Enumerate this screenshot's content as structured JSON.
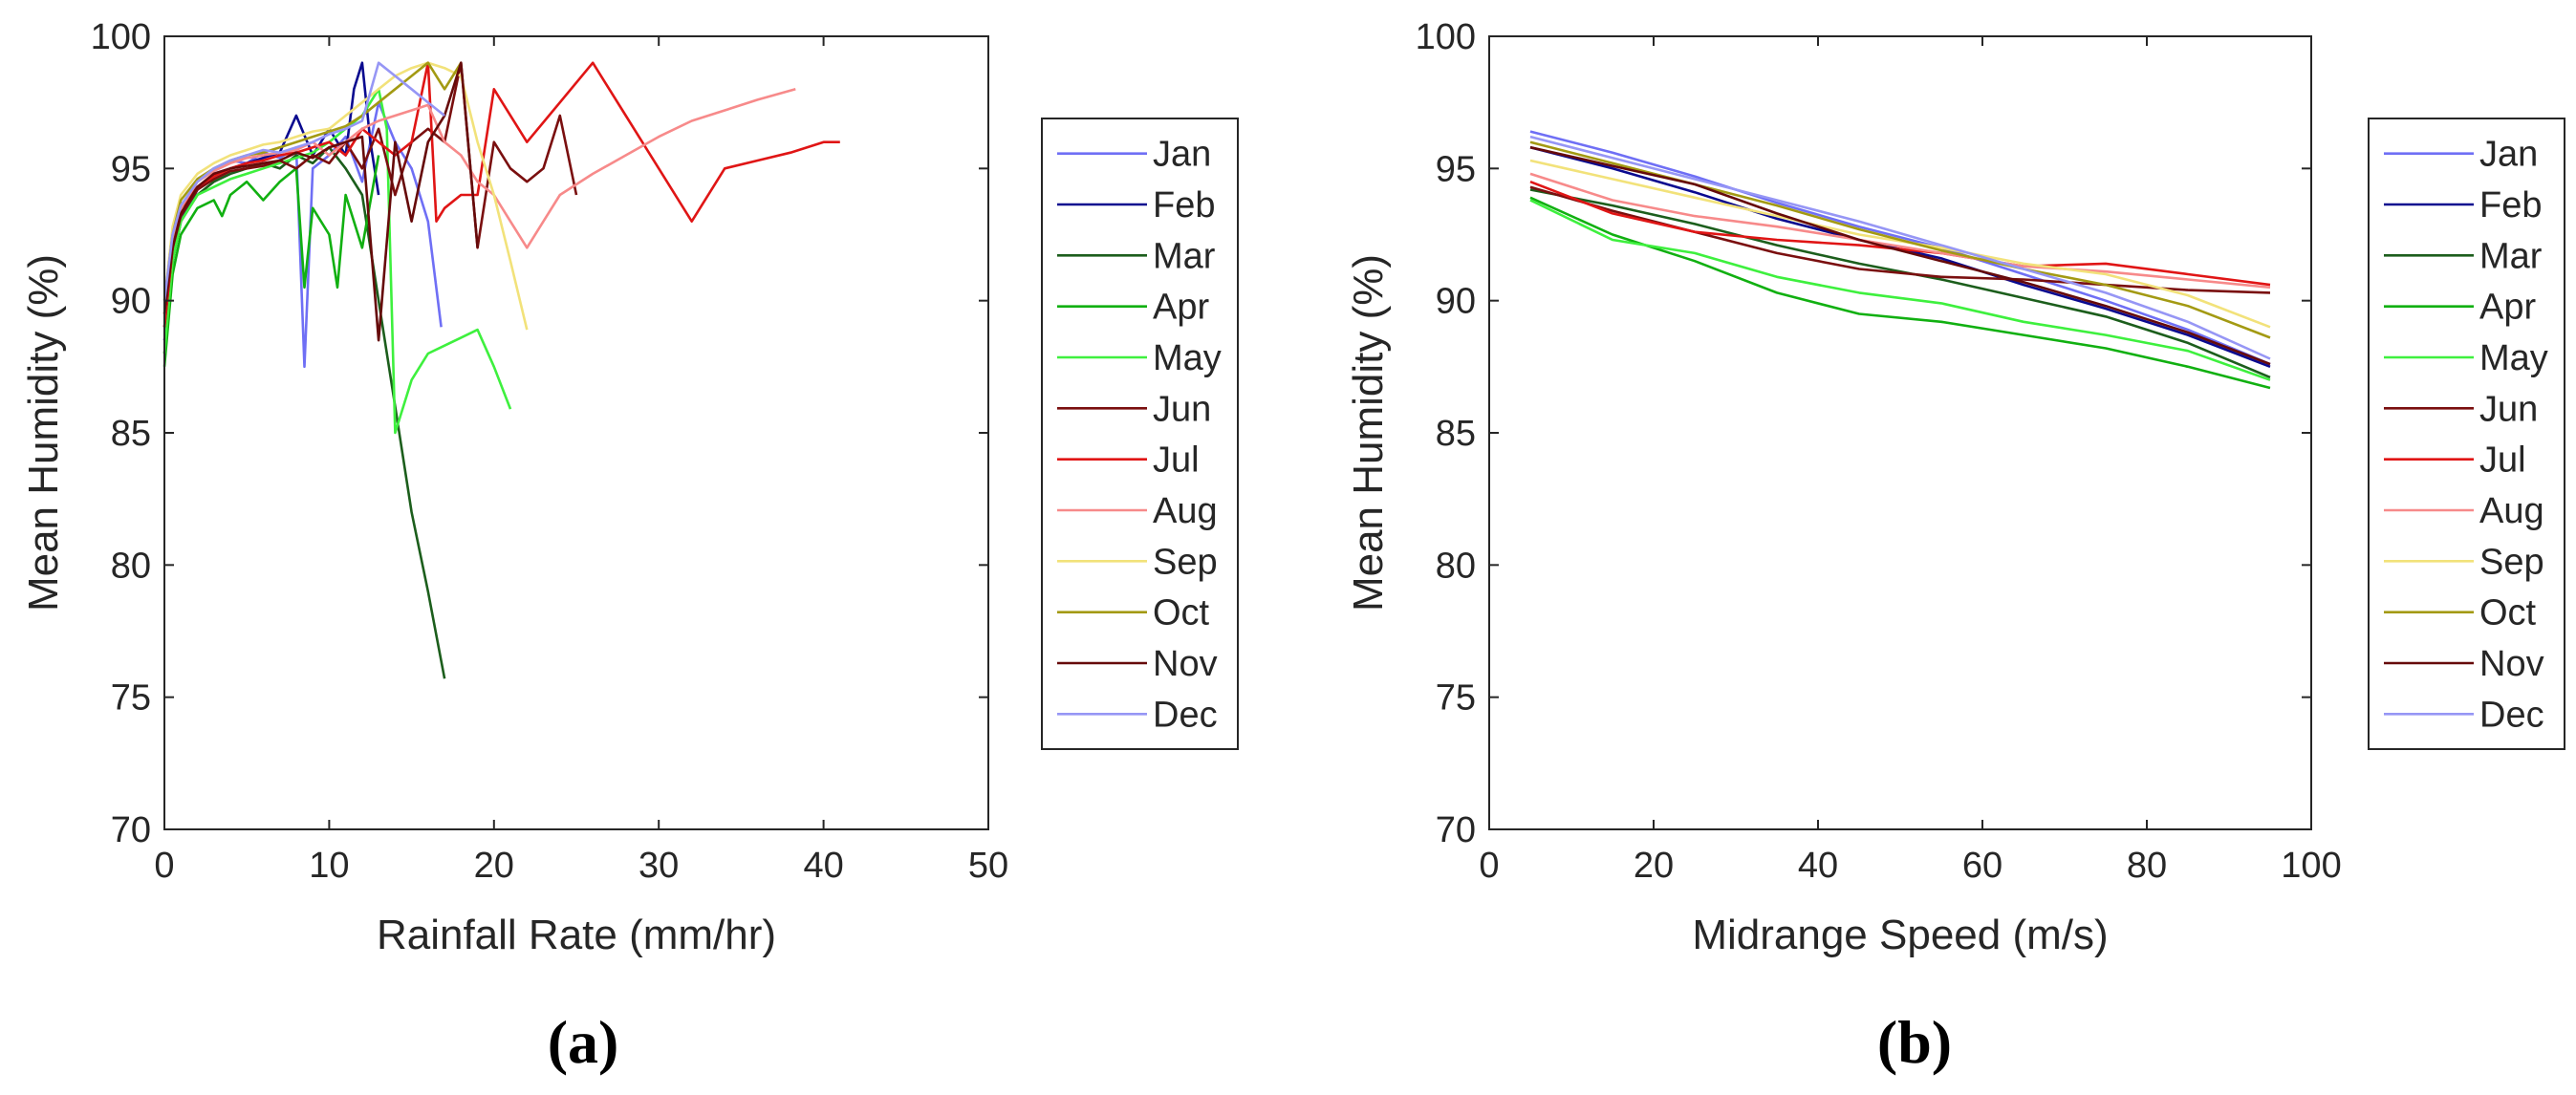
{
  "captions": {
    "a": "(a)",
    "b": "(b)"
  },
  "colors": {
    "Jan": "#6f6ff5",
    "Feb": "#0a0a8f",
    "Mar": "#1c5e1c",
    "Apr": "#11b011",
    "May": "#3ef03e",
    "Jun": "#7a0f0f",
    "Jul": "#e01515",
    "Aug": "#f78a8a",
    "Sep": "#f2e27a",
    "Oct": "#a39a13",
    "Nov": "#660a0a",
    "Dec": "#9696f5"
  },
  "chart_data": [
    {
      "id": "a",
      "type": "line",
      "title": "",
      "xlabel": "Rainfall Rate (mm/hr)",
      "ylabel": "Mean Humidity (%)",
      "xlim": [
        0,
        50
      ],
      "ylim": [
        70,
        100
      ],
      "xticks": [
        0,
        10,
        20,
        30,
        40,
        50
      ],
      "yticks": [
        70,
        75,
        80,
        85,
        90,
        95,
        100
      ],
      "grid": false,
      "legend_position": "right",
      "series": [
        {
          "name": "Jan",
          "x": [
            0,
            0.5,
            1,
            2,
            3,
            4,
            5,
            6,
            7,
            8,
            8.5,
            9,
            10,
            11,
            12,
            13,
            14,
            15,
            16,
            16.8
          ],
          "y": [
            89,
            92,
            93.5,
            94.5,
            95,
            95.3,
            95.2,
            95.6,
            95.4,
            95.8,
            87.5,
            95,
            95.5,
            96.2,
            94.5,
            97.5,
            96,
            95,
            93,
            89
          ]
        },
        {
          "name": "Feb",
          "x": [
            0,
            0.5,
            1,
            2,
            3,
            4,
            5,
            6,
            7,
            8,
            9,
            10,
            11,
            11.5,
            12,
            12.5,
            13
          ],
          "y": [
            88.5,
            91.5,
            93,
            94.2,
            94.8,
            95,
            95.2,
            95.4,
            95.6,
            97,
            95.5,
            96.5,
            95.5,
            98,
            99,
            96,
            94
          ]
        },
        {
          "name": "Mar",
          "x": [
            0,
            0.5,
            1,
            2,
            3,
            4,
            5,
            6,
            7,
            8,
            9,
            10,
            11,
            12,
            13,
            14,
            15,
            16,
            17
          ],
          "y": [
            88,
            91.5,
            93,
            94,
            94.5,
            94.8,
            95,
            95.2,
            95,
            95.5,
            95.2,
            95.8,
            95,
            94,
            90,
            86,
            82,
            79,
            75.7
          ]
        },
        {
          "name": "Apr",
          "x": [
            0,
            0.5,
            1,
            2,
            3,
            3.5,
            4,
            5,
            6,
            7,
            8,
            8.5,
            9,
            10,
            10.5,
            11,
            12,
            13
          ],
          "y": [
            87.5,
            91,
            92.5,
            93.5,
            93.8,
            93.2,
            94,
            94.5,
            93.8,
            94.5,
            95,
            90.5,
            93.5,
            92.5,
            90.5,
            94,
            92,
            95.5
          ]
        },
        {
          "name": "May",
          "x": [
            0,
            0.5,
            1,
            2,
            3,
            4,
            5,
            6,
            7,
            8,
            9,
            10,
            11,
            12,
            13,
            13.5,
            14,
            15,
            16,
            17,
            18,
            19,
            20,
            21
          ],
          "y": [
            88,
            91.5,
            93,
            94,
            94.3,
            94.6,
            94.8,
            95,
            95.2,
            95.4,
            95.6,
            96,
            96.5,
            97,
            98,
            96.5,
            85,
            87,
            88,
            88.3,
            88.6,
            88.9,
            87.5,
            85.9
          ]
        },
        {
          "name": "Jun",
          "x": [
            0,
            0.5,
            1,
            2,
            3,
            4,
            5,
            6,
            7,
            8,
            9,
            10,
            11,
            12,
            13,
            14,
            15,
            16,
            17,
            18,
            19,
            20,
            21,
            22,
            23,
            24,
            25
          ],
          "y": [
            89,
            92,
            93.2,
            94.2,
            94.6,
            94.9,
            95,
            95.1,
            95.3,
            95,
            95.5,
            95.2,
            96,
            95,
            96.5,
            94,
            96,
            96.5,
            96,
            99,
            92,
            96,
            95,
            94.5,
            95,
            97,
            94
          ]
        },
        {
          "name": "Jul",
          "x": [
            0,
            0.5,
            1,
            2,
            3,
            4,
            5,
            6,
            7,
            8,
            9,
            10,
            11,
            12,
            13,
            14,
            15,
            16,
            16.5,
            17,
            18,
            19,
            20,
            22,
            24,
            26,
            28,
            30,
            32,
            34,
            36,
            38,
            40,
            41
          ],
          "y": [
            89,
            92,
            93.5,
            94.3,
            94.7,
            95,
            95.2,
            95.3,
            95.5,
            95.6,
            95.8,
            96,
            95.5,
            96.5,
            96,
            95.5,
            96,
            99,
            93,
            93.5,
            94,
            94,
            98,
            96,
            97.5,
            99,
            97,
            95,
            93,
            95,
            95.3,
            95.6,
            96,
            96
          ]
        },
        {
          "name": "Aug",
          "x": [
            0,
            0.5,
            1,
            2,
            3,
            4,
            5,
            6,
            7,
            8,
            9,
            10,
            11,
            12,
            13,
            14,
            15,
            16,
            17,
            18,
            19,
            20,
            21,
            22,
            23,
            24,
            26,
            28,
            30,
            32,
            34,
            36,
            38.3
          ],
          "y": [
            89.5,
            92.3,
            93.5,
            94.5,
            94.9,
            95.2,
            95.4,
            95.5,
            95.6,
            95.7,
            96,
            95.5,
            96,
            96.5,
            96.8,
            97,
            97.2,
            97.4,
            96,
            95.5,
            94.5,
            94,
            93,
            92,
            93,
            94,
            94.8,
            95.5,
            96.2,
            96.8,
            97.2,
            97.6,
            98
          ]
        },
        {
          "name": "Sep",
          "x": [
            0,
            0.5,
            1,
            2,
            3,
            4,
            5,
            6,
            7,
            8,
            9,
            10,
            11,
            12,
            13,
            14,
            15,
            16,
            17,
            18,
            19,
            20,
            21,
            22
          ],
          "y": [
            90,
            92.8,
            94,
            94.8,
            95.2,
            95.5,
            95.7,
            95.9,
            96,
            96.2,
            96.4,
            96.5,
            97,
            97.5,
            98,
            98.5,
            98.8,
            99,
            98.8,
            98.5,
            96,
            94,
            91.5,
            88.9
          ]
        },
        {
          "name": "Oct",
          "x": [
            0,
            0.5,
            1,
            2,
            3,
            4,
            5,
            6,
            7,
            8,
            9,
            10,
            11,
            12,
            13,
            14,
            15,
            16,
            17,
            18
          ],
          "y": [
            90,
            92.5,
            93.8,
            94.6,
            95,
            95.3,
            95.5,
            95.6,
            95.8,
            96,
            96.2,
            96.4,
            96.6,
            97,
            97.5,
            98,
            98.5,
            99,
            98,
            99
          ]
        },
        {
          "name": "Nov",
          "x": [
            0,
            0.5,
            1,
            2,
            3,
            4,
            5,
            6,
            7,
            8,
            9,
            10,
            11,
            12,
            13,
            14,
            15,
            16,
            17,
            18,
            19
          ],
          "y": [
            89.5,
            92,
            93.3,
            94.3,
            94.8,
            95,
            95.1,
            95.2,
            95.3,
            95.6,
            95.4,
            95.8,
            96,
            96.2,
            88.5,
            96,
            93,
            96,
            97,
            99,
            92
          ]
        },
        {
          "name": "Dec",
          "x": [
            0,
            0.5,
            1,
            2,
            3,
            4,
            5,
            6,
            7,
            8,
            9,
            10,
            11,
            12,
            13,
            14,
            15,
            16,
            17
          ],
          "y": [
            90,
            92.5,
            93.6,
            94.5,
            95,
            95.3,
            95.5,
            95.7,
            95.6,
            95.8,
            96,
            96.3,
            96.5,
            96.8,
            99,
            98.5,
            98,
            97.5,
            97
          ]
        }
      ]
    },
    {
      "id": "b",
      "type": "line",
      "title": "",
      "xlabel": "Midrange Speed (m/s)",
      "ylabel": "Mean Humidity (%)",
      "xlim": [
        0,
        100
      ],
      "ylim": [
        70,
        100
      ],
      "xticks": [
        0,
        20,
        40,
        60,
        80,
        100
      ],
      "yticks": [
        70,
        75,
        80,
        85,
        90,
        95,
        100
      ],
      "grid": false,
      "legend_position": "right",
      "series": [
        {
          "name": "Jan",
          "x": [
            5,
            15,
            25,
            35,
            45,
            55,
            65,
            75,
            85,
            95
          ],
          "y": [
            96.4,
            95.6,
            94.7,
            93.7,
            92.8,
            92,
            91,
            90,
            88.9,
            87.6
          ]
        },
        {
          "name": "Feb",
          "x": [
            5,
            15,
            25,
            35,
            45,
            55,
            65,
            75,
            85,
            95
          ],
          "y": [
            95.8,
            95,
            94.1,
            93.1,
            92.3,
            91.6,
            90.6,
            89.7,
            88.7,
            87.5
          ]
        },
        {
          "name": "Mar",
          "x": [
            5,
            15,
            25,
            35,
            45,
            55,
            65,
            75,
            85,
            95
          ],
          "y": [
            94.2,
            93.6,
            92.9,
            92.1,
            91.4,
            90.8,
            90.1,
            89.4,
            88.4,
            87.1
          ]
        },
        {
          "name": "Apr",
          "x": [
            5,
            15,
            25,
            35,
            45,
            55,
            65,
            75,
            85,
            95
          ],
          "y": [
            93.9,
            92.5,
            91.5,
            90.3,
            89.5,
            89.2,
            88.7,
            88.2,
            87.5,
            86.7
          ]
        },
        {
          "name": "May",
          "x": [
            5,
            15,
            25,
            35,
            45,
            55,
            65,
            75,
            85,
            95
          ],
          "y": [
            93.8,
            92.3,
            91.8,
            90.9,
            90.3,
            89.9,
            89.2,
            88.7,
            88.1,
            87
          ]
        },
        {
          "name": "Jun",
          "x": [
            5,
            15,
            25,
            35,
            45,
            55,
            65,
            75,
            85,
            95
          ],
          "y": [
            94.3,
            93.4,
            92.6,
            91.8,
            91.2,
            90.9,
            90.8,
            90.6,
            90.4,
            90.3
          ]
        },
        {
          "name": "Jul",
          "x": [
            5,
            15,
            25,
            35,
            45,
            55,
            65,
            75,
            85,
            95
          ],
          "y": [
            94.5,
            93.3,
            92.6,
            92.3,
            92.1,
            91.8,
            91.3,
            91.4,
            91,
            90.6
          ]
        },
        {
          "name": "Aug",
          "x": [
            5,
            15,
            25,
            35,
            45,
            55,
            65,
            75,
            85,
            95
          ],
          "y": [
            94.8,
            93.8,
            93.2,
            92.8,
            92.3,
            91.8,
            91.3,
            91.1,
            90.8,
            90.5
          ]
        },
        {
          "name": "Sep",
          "x": [
            5,
            15,
            25,
            35,
            45,
            55,
            65,
            75,
            85,
            95
          ],
          "y": [
            95.3,
            94.6,
            93.9,
            93.2,
            92.5,
            92,
            91.4,
            91,
            90.2,
            89
          ]
        },
        {
          "name": "Oct",
          "x": [
            5,
            15,
            25,
            35,
            45,
            55,
            65,
            75,
            85,
            95
          ],
          "y": [
            96,
            95.2,
            94.4,
            93.6,
            92.7,
            91.9,
            91.2,
            90.6,
            89.8,
            88.6
          ]
        },
        {
          "name": "Nov",
          "x": [
            5,
            15,
            25,
            35,
            45,
            55,
            65,
            75,
            85,
            95
          ],
          "y": [
            95.8,
            95.1,
            94.4,
            93.3,
            92.3,
            91.5,
            90.7,
            89.8,
            88.8,
            87.6
          ]
        },
        {
          "name": "Dec",
          "x": [
            5,
            15,
            25,
            35,
            45,
            55,
            65,
            75,
            85,
            95
          ],
          "y": [
            96.2,
            95.4,
            94.6,
            93.8,
            93,
            92.1,
            91.2,
            90.3,
            89.2,
            87.8
          ]
        }
      ]
    }
  ]
}
